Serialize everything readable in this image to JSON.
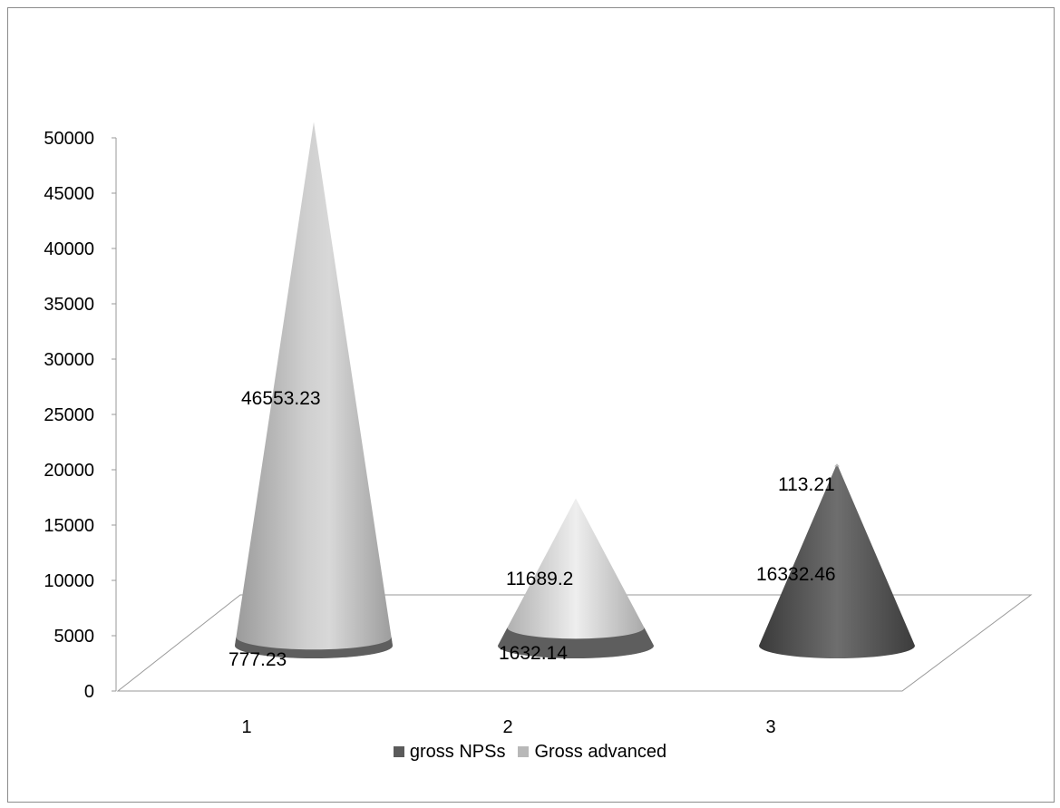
{
  "chart_data": {
    "type": "bar",
    "style": "3d-cone-stacked",
    "categories": [
      "1",
      "2",
      "3"
    ],
    "series": [
      {
        "name": "gross NPSs",
        "values": [
          777.23,
          1632.14,
          16332.46
        ],
        "labels": [
          "777.23",
          "1632.14",
          "16332.46"
        ],
        "color": "#5b5b5b"
      },
      {
        "name": "Gross advanced",
        "values": [
          46553.23,
          11689.2,
          113.21
        ],
        "labels": [
          "46553.23",
          "11689.2",
          "113.21"
        ],
        "color": "#b8b8b8"
      }
    ],
    "ylim": [
      0,
      50000
    ],
    "yticks": [
      "0",
      "5000",
      "10000",
      "15000",
      "20000",
      "25000",
      "30000",
      "35000",
      "40000",
      "45000",
      "50000"
    ],
    "grid": false,
    "legend": "bottom"
  }
}
